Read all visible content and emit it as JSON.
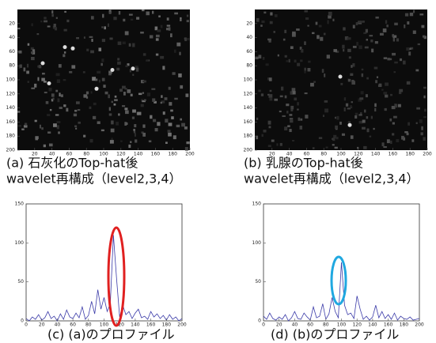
{
  "chart_data": [
    {
      "type": "image",
      "caption": [
        "(a) 石灰化のTop-hat後",
        "wavelet再構成（level2,3,4）"
      ],
      "xlim": [
        0,
        200
      ],
      "ylim": [
        200,
        0
      ],
      "xticks": [
        20,
        40,
        60,
        80,
        100,
        120,
        140,
        160,
        180,
        200
      ],
      "yticks": [
        20,
        40,
        60,
        80,
        100,
        120,
        140,
        160,
        180,
        200
      ]
    },
    {
      "type": "image",
      "caption": [
        "(b) 乳腺のTop-hat後",
        "wavelet再構成（level2,3,4）"
      ],
      "xlim": [
        0,
        200
      ],
      "ylim": [
        200,
        0
      ],
      "xticks": [
        20,
        40,
        60,
        80,
        100,
        120,
        140,
        160,
        180,
        200
      ],
      "yticks": [
        20,
        40,
        60,
        80,
        100,
        120,
        140,
        160,
        180,
        200
      ]
    },
    {
      "type": "line",
      "caption": [
        "(c) (a)のプロファイル"
      ],
      "color": "#3a3aa8",
      "xlim": [
        0,
        200
      ],
      "ylim": [
        0,
        150
      ],
      "xticks": [
        0,
        20,
        40,
        60,
        80,
        100,
        120,
        140,
        160,
        180,
        200
      ],
      "yticks": [
        0,
        50,
        100,
        150
      ],
      "x": [
        0,
        4,
        8,
        12,
        16,
        20,
        24,
        28,
        32,
        36,
        40,
        44,
        48,
        52,
        56,
        60,
        64,
        68,
        72,
        76,
        80,
        84,
        88,
        92,
        96,
        100,
        104,
        108,
        112,
        116,
        120,
        124,
        128,
        132,
        136,
        140,
        144,
        148,
        152,
        156,
        160,
        164,
        168,
        172,
        176,
        180,
        184,
        188,
        192,
        196,
        200
      ],
      "values": [
        3,
        0,
        5,
        2,
        8,
        1,
        4,
        12,
        3,
        6,
        0,
        9,
        2,
        14,
        5,
        3,
        10,
        4,
        18,
        2,
        7,
        25,
        9,
        40,
        15,
        30,
        12,
        22,
        110,
        55,
        5,
        20,
        8,
        12,
        3,
        10,
        15,
        4,
        6,
        2,
        12,
        5,
        9,
        3,
        7,
        1,
        8,
        2,
        5,
        0,
        3
      ]
    },
    {
      "type": "line",
      "caption": [
        "(d) (b)のプロファイル"
      ],
      "color": "#3a3aa8",
      "xlim": [
        0,
        200
      ],
      "ylim": [
        0,
        150
      ],
      "xticks": [
        0,
        20,
        40,
        60,
        80,
        100,
        120,
        140,
        160,
        180,
        200
      ],
      "yticks": [
        0,
        50,
        100,
        150
      ],
      "x": [
        0,
        4,
        8,
        12,
        16,
        20,
        24,
        28,
        32,
        36,
        40,
        44,
        48,
        52,
        56,
        60,
        64,
        68,
        72,
        76,
        80,
        84,
        88,
        92,
        96,
        100,
        104,
        108,
        112,
        116,
        120,
        124,
        128,
        132,
        136,
        140,
        144,
        148,
        152,
        156,
        160,
        164,
        168,
        172,
        176,
        180,
        184,
        188,
        192,
        196,
        200
      ],
      "values": [
        6,
        2,
        10,
        3,
        1,
        5,
        2,
        8,
        0,
        4,
        12,
        3,
        2,
        10,
        5,
        1,
        18,
        4,
        6,
        22,
        2,
        9,
        30,
        12,
        4,
        75,
        20,
        8,
        10,
        3,
        32,
        15,
        2,
        6,
        1,
        5,
        20,
        4,
        12,
        3,
        8,
        2,
        10,
        1,
        6,
        3,
        2,
        5,
        1,
        2,
        3
      ]
    }
  ]
}
